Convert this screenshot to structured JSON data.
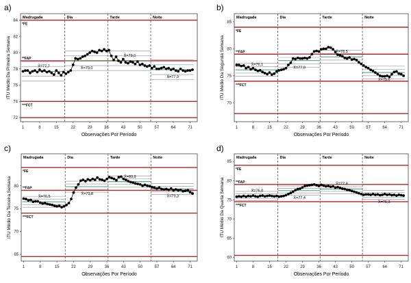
{
  "figure": {
    "period_labels": [
      "Madrugada",
      "Dia",
      "Tarde",
      "Noite"
    ],
    "x_axis_title": "Observações Por Período",
    "x_ticks": [
      1,
      8,
      15,
      22,
      29,
      36,
      43,
      50,
      57,
      64,
      71
    ],
    "limit_labels": {
      "fe": "*FE",
      "fap": "**FAP",
      "fct": "***FCT"
    },
    "colors": {
      "limit": "#b0272d",
      "mean": "#2e8b57",
      "control": "#8c8c8c",
      "period": "#555555",
      "data": "#000000"
    }
  },
  "chart_data": [
    {
      "panel_label": "a)",
      "type": "line",
      "ylabel": "ITU Médio Da Primeira Semana",
      "xlim": [
        0,
        74
      ],
      "ylim": [
        71.5,
        84.8
      ],
      "yticks": [
        72,
        74,
        76,
        78,
        80,
        82,
        84
      ],
      "limits": {
        "fe": 84,
        "fap": 79,
        "fct": 74,
        "bottom": 72
      },
      "period_breaks": [
        18.5,
        36.5,
        54.5
      ],
      "means": [
        {
          "label": "X̄=77,7",
          "value": 77.7,
          "x0": 1,
          "x1": 18
        },
        {
          "label": "X̄=79,0",
          "value": 79.0,
          "x0": 19,
          "x1": 36
        },
        {
          "label": "X̄=79,0",
          "value": 79.0,
          "x0": 37,
          "x1": 54
        },
        {
          "label": "X̄=77,9",
          "value": 77.9,
          "x0": 55,
          "x1": 72
        }
      ],
      "y": [
        77.7,
        77.8,
        77.8,
        77.5,
        77.7,
        77.8,
        77.6,
        77.9,
        77.7,
        77.8,
        77.6,
        77.7,
        77.5,
        77.3,
        77.8,
        77.5,
        77.2,
        77.6,
        77.4,
        77.6,
        77.8,
        78.5,
        79.3,
        79.2,
        79.3,
        79.5,
        79.6,
        79.8,
        80.0,
        80.2,
        80.1,
        80.0,
        80.3,
        80.2,
        80.4,
        80.2,
        80.3,
        79.6,
        79.1,
        79.5,
        79.0,
        78.8,
        79.2,
        78.8,
        78.7,
        78.9,
        78.8,
        78.6,
        78.9,
        78.5,
        78.6,
        78.4,
        78.3,
        78.4,
        78.1,
        78.3,
        78.0,
        78.0,
        78.1,
        78.2,
        78.0,
        78.1,
        77.9,
        78.0,
        77.8,
        77.7,
        78.0,
        77.8,
        77.7,
        77.8,
        77.8,
        77.9
      ]
    },
    {
      "panel_label": "b)",
      "type": "line",
      "ylabel": "ITU Médio Da Segunda Semana",
      "xlim": [
        0,
        74
      ],
      "ylim": [
        66.5,
        86.5
      ],
      "yticks": [
        70,
        75,
        80,
        85
      ],
      "limits": {
        "fe": 84,
        "fap": 79,
        "fct": 74,
        "bottom": 68
      },
      "period_breaks": [
        18.5,
        36.5,
        54.5
      ],
      "means": [
        {
          "label": "X̄=76,1",
          "value": 76.1,
          "x0": 1,
          "x1": 18
        },
        {
          "label": "X̄=77,8",
          "value": 77.8,
          "x0": 19,
          "x1": 36
        },
        {
          "label": "X̄=78,5",
          "value": 78.5,
          "x0": 37,
          "x1": 54
        },
        {
          "label": "X̄=75,6",
          "value": 75.6,
          "x0": 55,
          "x1": 72
        }
      ],
      "y": [
        77.0,
        77.0,
        76.8,
        76.9,
        76.4,
        76.6,
        76.2,
        76.4,
        76.1,
        75.9,
        76.0,
        75.7,
        75.5,
        75.3,
        75.6,
        75.2,
        75.4,
        75.8,
        76.0,
        76.1,
        76.2,
        76.4,
        77.0,
        77.4,
        78.2,
        78.1,
        78.3,
        78.2,
        78.2,
        78.3,
        78.2,
        78.4,
        79.0,
        79.5,
        79.6,
        79.5,
        79.9,
        80.0,
        80.0,
        80.3,
        80.2,
        79.9,
        79.4,
        78.9,
        78.8,
        78.6,
        78.3,
        78.2,
        78.4,
        78.0,
        78.1,
        77.9,
        77.5,
        77.2,
        76.9,
        76.6,
        76.4,
        76.1,
        75.9,
        75.6,
        75.3,
        75.0,
        74.9,
        74.9,
        75.0,
        74.8,
        75.3,
        75.7,
        75.8,
        75.4,
        75.3,
        75.0
      ]
    },
    {
      "panel_label": "c)",
      "type": "line",
      "ylabel": "ITU Médio Da Terceira Semana",
      "xlim": [
        0,
        74
      ],
      "ylim": [
        63.5,
        87
      ],
      "yticks": [
        65,
        70,
        75,
        80
      ],
      "limits": {
        "fe": 84,
        "fap": 79,
        "fct": 74,
        "bottom": 64.5
      },
      "period_breaks": [
        18.5,
        36.5,
        54.5
      ],
      "means": [
        {
          "label": "X̄=76,5",
          "value": 76.5,
          "x0": 1,
          "x1": 18
        },
        {
          "label": "X̄=79,8",
          "value": 79.8,
          "x0": 19,
          "x1": 36
        },
        {
          "label": "X̄=80,9",
          "value": 80.9,
          "x0": 37,
          "x1": 54
        },
        {
          "label": "X̄=79,3",
          "value": 79.3,
          "x0": 55,
          "x1": 72
        }
      ],
      "y": [
        77.2,
        77.1,
        76.8,
        76.9,
        76.5,
        76.6,
        76.6,
        76.3,
        76.1,
        76.2,
        76.0,
        75.9,
        75.8,
        75.6,
        75.5,
        75.6,
        75.3,
        75.5,
        75.8,
        76.2,
        77.1,
        78.5,
        79.6,
        80.3,
        81.1,
        81.3,
        81.0,
        81.4,
        81.2,
        81.5,
        81.3,
        81.8,
        81.4,
        81.3,
        81.1,
        81.5,
        81.9,
        81.7,
        81.5,
        81.2,
        81.9,
        82.0,
        81.5,
        81.3,
        81.0,
        80.8,
        80.7,
        80.5,
        80.4,
        80.3,
        80.0,
        80.2,
        80.0,
        79.9,
        79.7,
        79.6,
        79.4,
        79.6,
        79.3,
        79.2,
        79.3,
        79.1,
        79.4,
        79.0,
        79.2,
        79.0,
        79.1,
        78.8,
        78.9,
        79.0,
        78.6,
        78.3
      ]
    },
    {
      "panel_label": "d)",
      "type": "line",
      "ylabel": "ITU Médio Da Quarta Semana",
      "xlim": [
        0,
        74
      ],
      "ylim": [
        59,
        87
      ],
      "yticks": [
        60,
        65,
        70,
        75,
        80,
        85
      ],
      "limits": {
        "fe": 84,
        "fap": 79,
        "fct": 74.5,
        "bottom": 60.5
      },
      "period_breaks": [
        18.5,
        36.5,
        54.5
      ],
      "means": [
        {
          "label": "X̄=76,0",
          "value": 76.0,
          "x0": 1,
          "x1": 18
        },
        {
          "label": "X̄=77,4",
          "value": 77.4,
          "x0": 19,
          "x1": 36
        },
        {
          "label": "X̄=77,8",
          "value": 77.8,
          "x0": 37,
          "x1": 54
        },
        {
          "label": "X̄=76,3",
          "value": 76.3,
          "x0": 55,
          "x1": 72
        }
      ],
      "y": [
        75.8,
        75.9,
        75.8,
        76.0,
        75.8,
        76.0,
        75.9,
        76.1,
        75.9,
        75.8,
        76.0,
        76.1,
        75.9,
        76.0,
        76.1,
        76.0,
        75.9,
        76.0,
        75.8,
        75.9,
        76.0,
        76.2,
        76.5,
        76.8,
        77.1,
        77.5,
        77.8,
        77.9,
        78.2,
        78.6,
        78.7,
        78.8,
        78.9,
        79.0,
        78.8,
        78.6,
        78.9,
        78.7,
        78.5,
        78.6,
        78.4,
        78.5,
        78.2,
        78.3,
        78.1,
        77.9,
        77.8,
        77.6,
        77.5,
        77.3,
        77.1,
        76.9,
        76.7,
        76.5,
        76.3,
        76.4,
        76.4,
        76.3,
        76.5,
        76.3,
        76.4,
        76.2,
        76.3,
        76.5,
        76.3,
        76.4,
        76.2,
        76.3,
        76.1,
        76.3,
        76.2,
        76.1
      ]
    }
  ]
}
